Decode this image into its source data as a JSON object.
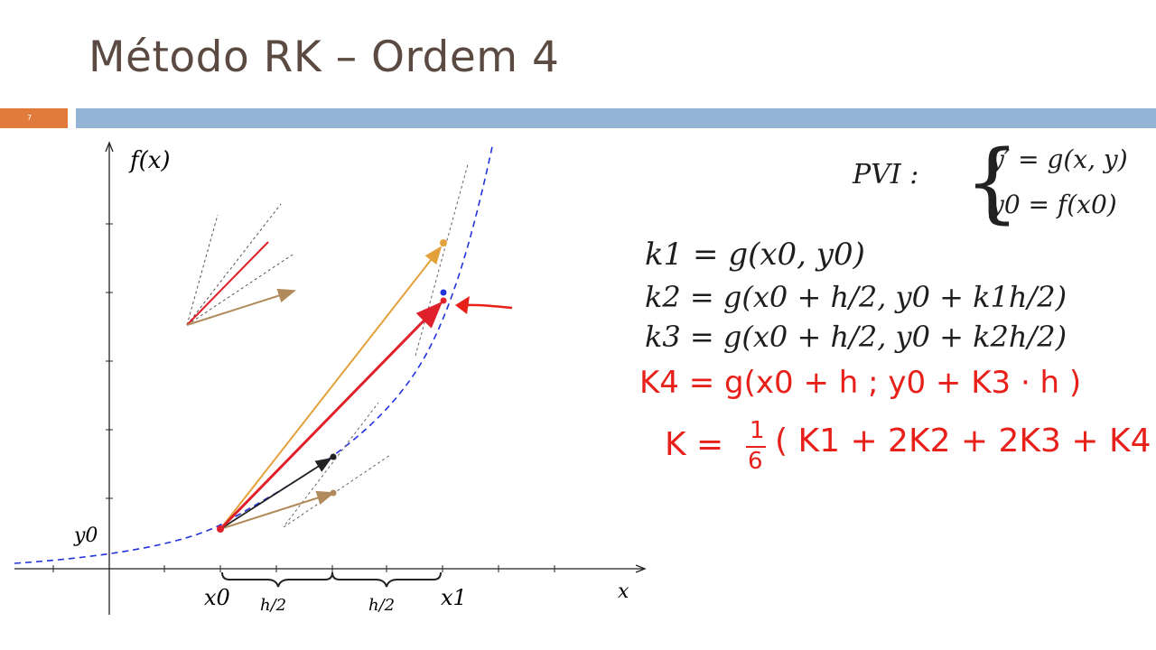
{
  "slide": {
    "title": "Método RK – Ordem 4",
    "number": "7"
  },
  "graph": {
    "y_axis_label": "f(x)",
    "x_axis_label": "x",
    "y0_label": "y0",
    "x0_label": "x0",
    "x1_label": "x1",
    "h_half_left": "h/2",
    "h_half_right": "h/2"
  },
  "pvi": {
    "label": "PVI :",
    "eq1": "y′ = g(x, y)",
    "eq2": "y0 = f(x0)"
  },
  "equations": {
    "k1": "k1 = g(x0, y0)",
    "k2": "k2 = g(x0 + h/2, y0 + k1h/2)",
    "k3": "k3 = g(x0 + h/2, y0 + k2h/2)"
  },
  "handwritten": {
    "k4": "K4 = g(x0 + h ; y0 + K3 · h )",
    "k_prefix": "K =",
    "fraction_num": "1",
    "fraction_den": "6",
    "k_sum": "( K1 + 2K2 + 2K3 + K4 )"
  },
  "colors": {
    "title": "#5a4a42",
    "slide_number_bar": "#e07b3c",
    "accent_bar": "#94b4d5",
    "curve": "#2233dd",
    "red": "#e0202a",
    "orange": "#e3a13c",
    "brown": "#b08a5a",
    "black": "#222222"
  }
}
